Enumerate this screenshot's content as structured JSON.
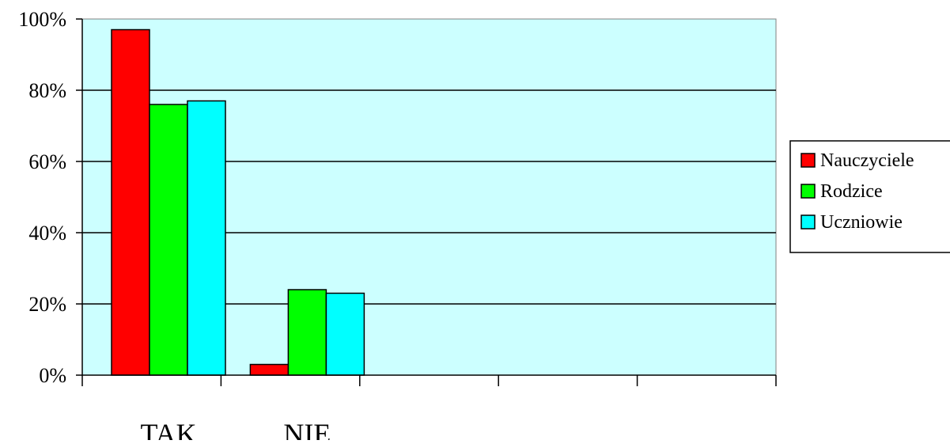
{
  "chart_data": {
    "type": "bar",
    "categories": [
      "TAK",
      "NIE",
      "",
      "",
      ""
    ],
    "series": [
      {
        "name": "Nauczyciele",
        "values": [
          97,
          3,
          null,
          null,
          null
        ],
        "color": "#ff0000"
      },
      {
        "name": "Rodzice",
        "values": [
          76,
          24,
          null,
          null,
          null
        ],
        "color": "#00ff00"
      },
      {
        "name": "Uczniowie",
        "values": [
          77,
          23,
          null,
          null,
          null
        ],
        "color": "#00ffff"
      }
    ],
    "yticks": [
      "0%",
      "20%",
      "40%",
      "60%",
      "80%",
      "100%"
    ],
    "ylim": [
      0,
      100
    ],
    "grid": true,
    "legend_position": "right",
    "plot_background": "#ccffff"
  }
}
